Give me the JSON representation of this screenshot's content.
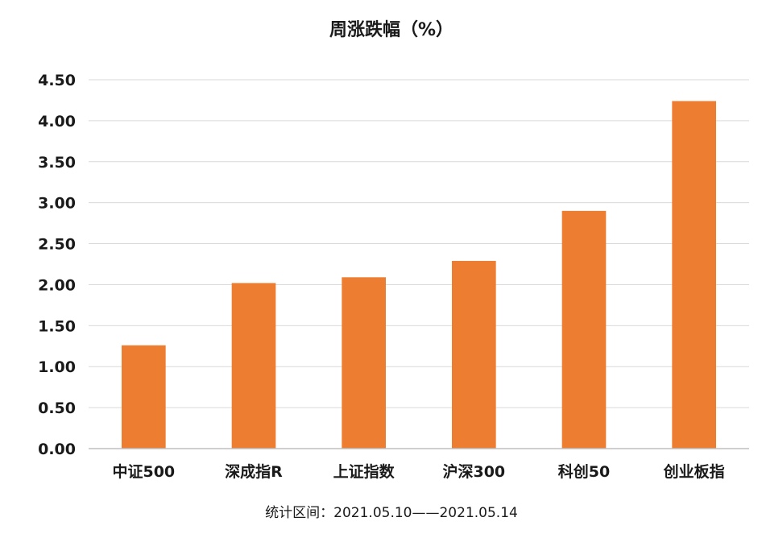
{
  "chart_data": {
    "type": "bar",
    "title": "周涨跌幅（%）",
    "categories": [
      "中证500",
      "深成指R",
      "上证指数",
      "沪深300",
      "科创50",
      "创业板指"
    ],
    "values": [
      1.26,
      2.02,
      2.09,
      2.29,
      2.9,
      4.24
    ],
    "ylim": [
      0,
      4.5
    ],
    "ytick_step": 0.5,
    "ytick_labels": [
      "0.00",
      "0.50",
      "1.00",
      "1.50",
      "2.00",
      "2.50",
      "3.00",
      "3.50",
      "4.00",
      "4.50"
    ],
    "xlabel": "",
    "ylabel": "",
    "grid": true,
    "legend": "none",
    "bar_color": "#ED7D31"
  },
  "footnote": "统计区间：2021.05.10——2021.05.14"
}
